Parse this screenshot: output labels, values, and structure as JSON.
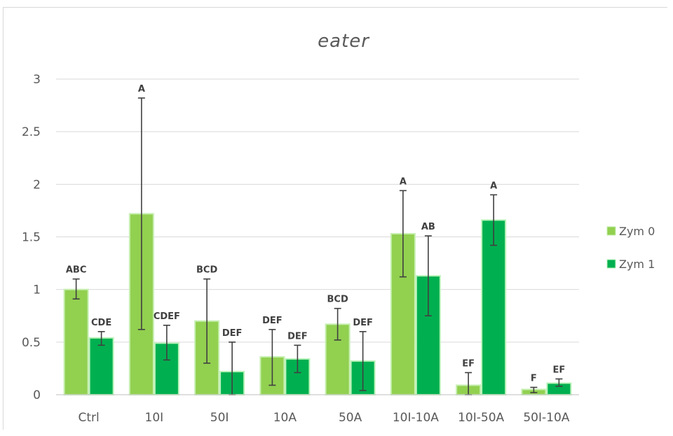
{
  "chart_data": {
    "type": "bar",
    "title": "eater",
    "xlabel": "",
    "ylabel": "",
    "ylim": [
      0,
      3
    ],
    "yticks": [
      "0",
      "0.5",
      "1",
      "1.5",
      "2",
      "2.5",
      "3"
    ],
    "grid": true,
    "legend_position": "right",
    "categories": [
      "Ctrl",
      "10I",
      "50I",
      "10A",
      "50A",
      "10I-10A",
      "10I-50A",
      "50I-10A"
    ],
    "series": [
      {
        "name": "Zym 0",
        "color": "#92d050",
        "edge_color": "#c6efb0",
        "values": [
          1.0,
          1.72,
          0.7,
          0.36,
          0.67,
          1.53,
          0.09,
          0.05
        ],
        "error_low": [
          0.91,
          0.62,
          0.3,
          0.09,
          0.52,
          1.12,
          0.0,
          0.02
        ],
        "error_high": [
          1.1,
          2.82,
          1.1,
          0.62,
          0.82,
          1.94,
          0.21,
          0.07
        ],
        "labels": [
          "ABC",
          "A",
          "BCD",
          "DEF",
          "BCD",
          "A",
          "EF",
          "F"
        ]
      },
      {
        "name": "Zym 1",
        "color": "#00b050",
        "edge_color": "#b9f2b9",
        "values": [
          0.54,
          0.49,
          0.22,
          0.34,
          0.32,
          1.13,
          1.66,
          0.11
        ],
        "error_low": [
          0.47,
          0.33,
          0.0,
          0.21,
          0.04,
          0.75,
          1.42,
          0.08
        ],
        "error_high": [
          0.6,
          0.66,
          0.5,
          0.47,
          0.6,
          1.51,
          1.9,
          0.15
        ],
        "labels": [
          "CDE",
          "CDEF",
          "DEF",
          "DEF",
          "DEF",
          "AB",
          "A",
          "EF"
        ]
      }
    ]
  }
}
